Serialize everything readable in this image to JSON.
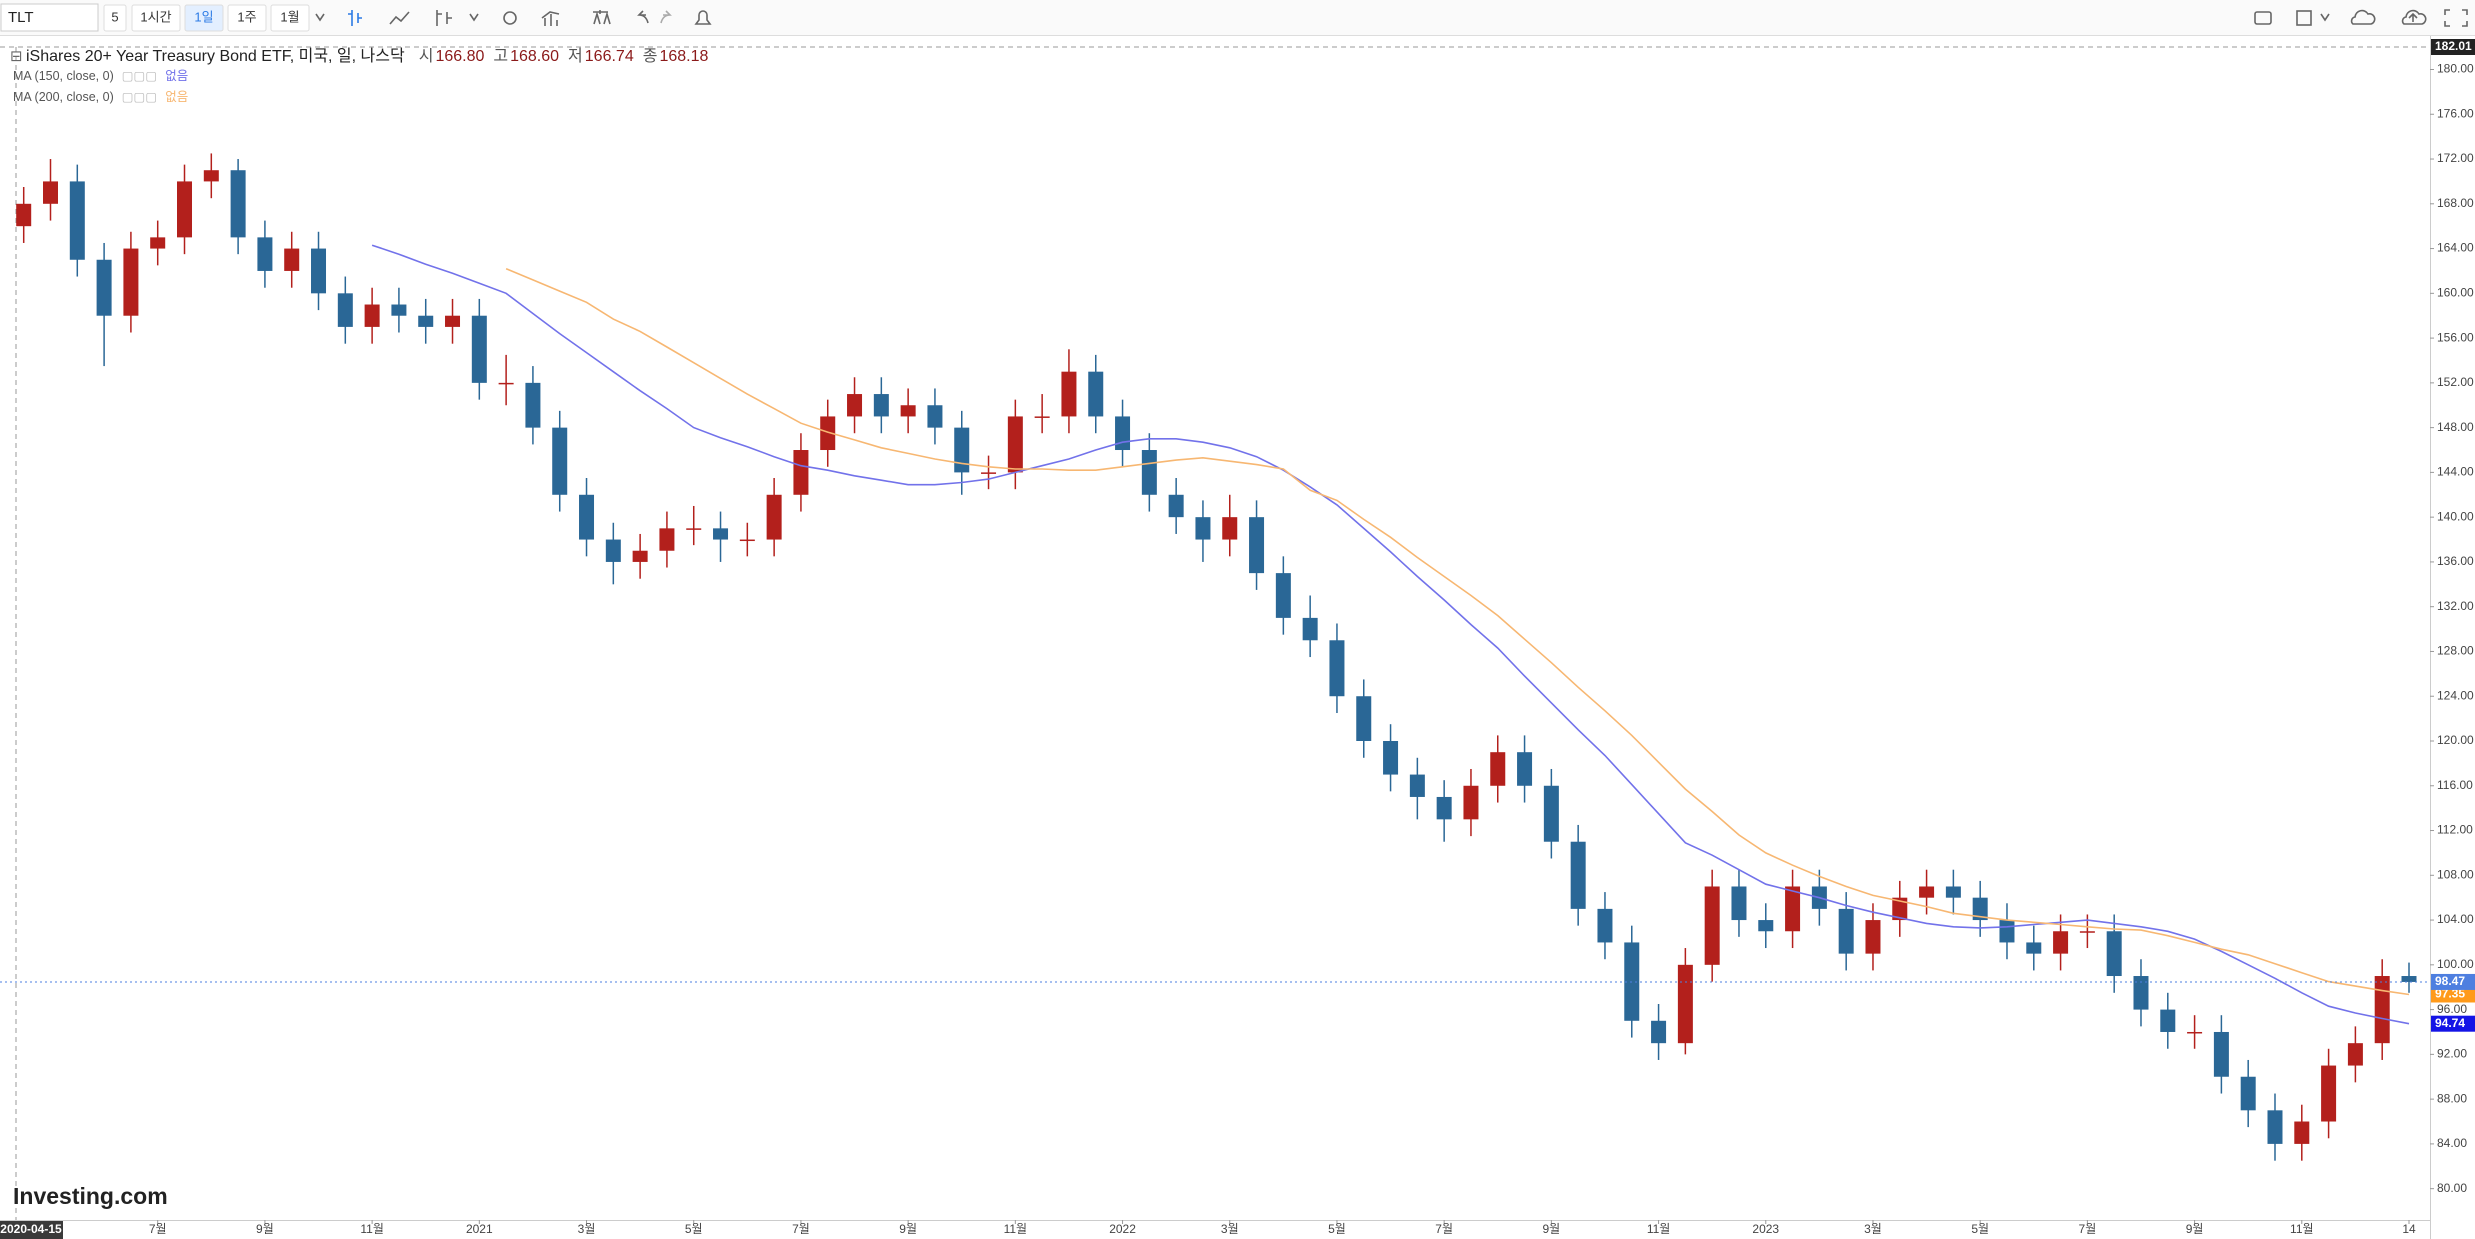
{
  "toolbar": {
    "symbol": "TLT",
    "items": [
      "5",
      "1시간",
      "1일",
      "1주",
      "1월"
    ],
    "active": 2
  },
  "header": {
    "title": "iShares 20+ Year Treasury Bond ETF, 미국, 일, 나스닥",
    "ohlc": [
      {
        "label": "시",
        "value": "166.80"
      },
      {
        "label": "고",
        "value": "168.60"
      },
      {
        "label": "저",
        "value": "166.74"
      },
      {
        "label": "종",
        "value": "168.18"
      }
    ]
  },
  "watermark": "Investing.com",
  "chart_data": {
    "type": "candlestick",
    "up_color": "#b3201c",
    "down_color": "#2a6796",
    "last_color": "#4e7fe0",
    "categories": [
      "2020-04-15",
      null,
      null,
      null,
      null,
      "7월",
      null,
      null,
      null,
      "9월",
      null,
      null,
      null,
      "11월",
      null,
      null,
      null,
      "2021",
      null,
      null,
      null,
      "3월",
      null,
      null,
      null,
      "5월",
      null,
      null,
      null,
      "7월",
      null,
      null,
      null,
      "9월",
      null,
      null,
      null,
      "11월",
      null,
      null,
      null,
      "2022",
      null,
      null,
      null,
      "3월",
      null,
      null,
      null,
      "5월",
      null,
      null,
      null,
      "7월",
      null,
      null,
      null,
      "9월",
      null,
      null,
      null,
      "11월",
      null,
      null,
      null,
      "2023",
      null,
      null,
      null,
      "3월",
      null,
      null,
      null,
      "5월",
      null,
      null,
      null,
      "7월",
      null,
      null,
      null,
      "9월",
      null,
      null,
      null,
      "11월",
      null,
      null,
      null,
      "14"
    ],
    "open": [
      166,
      168,
      170,
      163,
      158,
      164,
      165,
      170,
      171,
      165,
      162,
      164,
      160,
      157,
      159,
      158,
      157,
      158,
      152,
      152,
      148,
      142,
      138,
      136,
      137,
      139,
      139,
      138,
      138,
      142,
      146,
      149,
      151,
      149,
      150,
      148,
      144,
      144,
      149,
      149,
      153,
      149,
      146,
      142,
      140,
      138,
      140,
      135,
      131,
      129,
      124,
      120,
      117,
      115,
      113,
      116,
      119,
      116,
      111,
      105,
      102,
      95,
      93,
      100,
      107,
      104,
      103,
      107,
      105,
      101,
      104,
      106,
      107,
      106,
      104,
      102,
      101,
      103,
      103,
      99,
      96,
      94,
      94,
      90,
      87,
      84,
      86,
      91,
      93,
      99
    ],
    "high": [
      169.5,
      172,
      171.5,
      164.5,
      165.5,
      166.5,
      171.5,
      172.5,
      172,
      166.5,
      165.5,
      165.5,
      161.5,
      160.5,
      160.5,
      159.5,
      159.5,
      159.5,
      154.5,
      153.5,
      149.5,
      143.5,
      139.5,
      138.5,
      140.5,
      141,
      140.5,
      139.5,
      143.5,
      147.5,
      150.5,
      152.5,
      152.5,
      151.5,
      151.5,
      149.5,
      145.5,
      150.5,
      151,
      155,
      154.5,
      150.5,
      147.5,
      143.5,
      141.5,
      142,
      141.5,
      136.5,
      133,
      130.5,
      125.5,
      121.5,
      118.5,
      116.5,
      117.5,
      120.5,
      120.5,
      117.5,
      112.5,
      106.5,
      103.5,
      96.5,
      101.5,
      108.5,
      108.5,
      105.5,
      108.5,
      108.5,
      106.5,
      105.5,
      107.5,
      108.5,
      108.5,
      107.5,
      105.5,
      103.5,
      104.5,
      104.5,
      104.5,
      100.5,
      97.5,
      95.5,
      95.5,
      91.5,
      88.5,
      87.5,
      92.5,
      94.5,
      100.5,
      100.2
    ],
    "low": [
      164.5,
      166.5,
      161.5,
      153.5,
      156.5,
      162.5,
      163.5,
      168.5,
      163.5,
      160.5,
      160.5,
      158.5,
      155.5,
      155.5,
      156.5,
      155.5,
      155.5,
      150.5,
      150,
      146.5,
      140.5,
      136.5,
      134,
      134.5,
      135.5,
      137.5,
      136,
      136.5,
      136.5,
      140.5,
      144.5,
      147.5,
      147.5,
      147.5,
      146.5,
      142,
      142.5,
      142.5,
      147.5,
      147.5,
      147.5,
      144.5,
      140.5,
      138.5,
      136,
      136.5,
      133.5,
      129.5,
      127.5,
      122.5,
      118.5,
      115.5,
      113,
      111,
      111.5,
      114.5,
      114.5,
      109.5,
      103.5,
      100.5,
      93.5,
      91.5,
      92,
      98.5,
      102.5,
      101.5,
      101.5,
      103.5,
      99.5,
      99.5,
      102.5,
      104.5,
      104.5,
      102.5,
      100.5,
      99.5,
      99.5,
      101.5,
      97.5,
      94.5,
      92.5,
      92.5,
      88.5,
      85.5,
      82.5,
      82.5,
      84.5,
      89.5,
      91.5,
      97.5
    ],
    "close": [
      168,
      170,
      163,
      158,
      164,
      165,
      170,
      171,
      165,
      162,
      164,
      160,
      157,
      159,
      158,
      157,
      158,
      152,
      152,
      148,
      142,
      138,
      136,
      137,
      139,
      139,
      138,
      138,
      142,
      146,
      149,
      151,
      149,
      150,
      148,
      144,
      144,
      149,
      149,
      153,
      149,
      146,
      142,
      140,
      138,
      140,
      135,
      131,
      129,
      124,
      120,
      117,
      115,
      113,
      116,
      119,
      116,
      111,
      105,
      102,
      95,
      93,
      100,
      107,
      104,
      103,
      107,
      105,
      101,
      104,
      106,
      107,
      106,
      104,
      102,
      101,
      103,
      103,
      99,
      96,
      94,
      94,
      90,
      87,
      84,
      86,
      91,
      93,
      99,
      98.47
    ],
    "series": [
      {
        "name": "MA (150, close, 0)",
        "status": "없음",
        "color": "#7272ea",
        "badge_color": "#1414e6",
        "values": [
          null,
          null,
          null,
          null,
          null,
          null,
          null,
          null,
          null,
          null,
          null,
          null,
          null,
          164.3,
          163.5,
          162.6,
          161.8,
          160.9,
          160.0,
          158.2,
          156.4,
          154.7,
          153.0,
          151.3,
          149.7,
          148.0,
          147.1,
          146.3,
          145.4,
          144.6,
          144.2,
          143.7,
          143.3,
          142.9,
          142.9,
          143.1,
          143.4,
          144.0,
          144.6,
          145.2,
          146.0,
          146.7,
          147.0,
          147.0,
          146.7,
          146.2,
          145.4,
          144.2,
          142.7,
          141.1,
          139.0,
          136.9,
          134.7,
          132.6,
          130.4,
          128.3,
          125.8,
          123.4,
          121.0,
          118.7,
          116.1,
          113.5,
          110.9,
          109.8,
          108.5,
          107.2,
          106.6,
          106.0,
          105.3,
          104.7,
          104.2,
          103.7,
          103.4,
          103.3,
          103.4,
          103.6,
          103.8,
          104.0,
          103.7,
          103.4,
          103.0,
          102.3,
          101.2,
          100.0,
          98.8,
          97.5,
          96.3,
          95.7,
          95.2,
          94.74
        ]
      },
      {
        "name": "MA (200, close, 0)",
        "status": "없음",
        "color": "#f7b772",
        "badge_color": "#ff9a1a",
        "values": [
          null,
          null,
          null,
          null,
          null,
          null,
          null,
          null,
          null,
          null,
          null,
          null,
          null,
          null,
          null,
          null,
          null,
          null,
          162.2,
          161.2,
          160.2,
          159.2,
          157.7,
          156.6,
          155.2,
          153.8,
          152.4,
          151.0,
          149.7,
          148.4,
          147.6,
          146.9,
          146.2,
          145.7,
          145.2,
          144.8,
          144.5,
          144.3,
          144.3,
          144.2,
          144.2,
          144.5,
          144.8,
          145.1,
          145.3,
          145.0,
          144.7,
          144.3,
          142.4,
          141.5,
          139.8,
          138.2,
          136.4,
          134.7,
          133.0,
          131.2,
          129.1,
          127.0,
          124.8,
          122.7,
          120.5,
          118.1,
          115.7,
          113.7,
          111.6,
          110.0,
          108.9,
          107.9,
          107.0,
          106.2,
          105.7,
          105.2,
          104.6,
          104.3,
          104.0,
          103.8,
          103.6,
          103.4,
          103.2,
          103.1,
          102.6,
          102.0,
          101.4,
          100.9,
          100.1,
          99.3,
          98.5,
          98.1,
          97.7,
          97.35
        ]
      }
    ],
    "ylim": [
      77.2,
      182.01
    ],
    "yticks": [
      {
        "value": 80,
        "label": "80.00"
      },
      {
        "value": 84,
        "label": "84.00"
      },
      {
        "value": 88,
        "label": "88.00"
      },
      {
        "value": 92,
        "label": "92.00"
      },
      {
        "value": 96,
        "label": "96.00"
      },
      {
        "value": 100,
        "label": "100.00"
      },
      {
        "value": 104,
        "label": "104.00"
      },
      {
        "value": 108,
        "label": "108.00"
      },
      {
        "value": 112,
        "label": "112.00"
      },
      {
        "value": 116,
        "label": "116.00"
      },
      {
        "value": 120,
        "label": "120.00"
      },
      {
        "value": 124,
        "label": "124.00"
      },
      {
        "value": 128,
        "label": "128.00"
      },
      {
        "value": 132,
        "label": "132.00"
      },
      {
        "value": 136,
        "label": "136.00"
      },
      {
        "value": 140,
        "label": "140.00"
      },
      {
        "value": 144,
        "label": "144.00"
      },
      {
        "value": 148,
        "label": "148.00"
      },
      {
        "value": 152,
        "label": "152.00"
      },
      {
        "value": 156,
        "label": "156.00"
      },
      {
        "value": 160,
        "label": "160.00"
      },
      {
        "value": 164,
        "label": "164.00"
      },
      {
        "value": 168,
        "label": "168.00"
      },
      {
        "value": 172,
        "label": "172.00"
      },
      {
        "value": 176,
        "label": "176.00"
      },
      {
        "value": 180,
        "label": "180.00"
      }
    ],
    "grid": false
  }
}
